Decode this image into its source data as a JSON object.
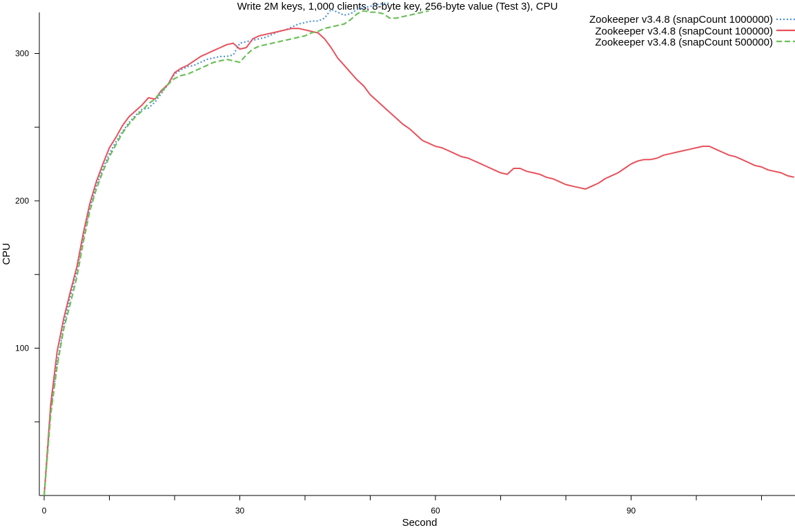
{
  "chart_data": {
    "type": "line",
    "title": "Write 2M keys, 1,000 clients, 8-byte key, 256-byte value (Test 3), CPU",
    "xlabel": "Second",
    "ylabel": "CPU",
    "xlim": [
      0,
      115
    ],
    "ylim": [
      0,
      335
    ],
    "x_ticks": [
      0,
      30,
      60,
      90
    ],
    "y_ticks": [
      100,
      200,
      300
    ],
    "grid": false,
    "legend_position": "top-right",
    "series": [
      {
        "name": "Zookeeper v3.4.8 (snapCount 1000000)",
        "color": "#4a90d9",
        "style": "dotted",
        "x": [
          0,
          1,
          2,
          3,
          4,
          5,
          6,
          7,
          8,
          9,
          10,
          11,
          12,
          13,
          14,
          15,
          16,
          17,
          18,
          19,
          20,
          21,
          22,
          23,
          24,
          25,
          26,
          27,
          28,
          29,
          30,
          31,
          32,
          33,
          34,
          35,
          36,
          37,
          38,
          39,
          40,
          41,
          42,
          43,
          44,
          45,
          46,
          47,
          48,
          49,
          50,
          51,
          52,
          53
        ],
        "y": [
          0,
          58,
          90,
          115,
          135,
          152,
          175,
          195,
          210,
          222,
          232,
          240,
          247,
          253,
          258,
          262,
          263,
          267,
          273,
          279,
          286,
          289,
          291,
          292,
          294,
          296,
          297,
          298,
          298,
          299,
          307,
          308,
          309,
          310,
          311,
          313,
          315,
          316,
          318,
          320,
          321,
          322,
          322,
          324,
          330,
          328,
          326,
          327,
          330,
          331,
          332,
          333,
          334,
          334
        ]
      },
      {
        "name": "Zookeeper v3.4.8 (snapCount 100000)",
        "color": "#e8505b",
        "style": "solid",
        "x": [
          0,
          1,
          2,
          3,
          4,
          5,
          6,
          7,
          8,
          9,
          10,
          11,
          12,
          13,
          14,
          15,
          16,
          17,
          18,
          19,
          20,
          21,
          22,
          23,
          24,
          25,
          26,
          27,
          28,
          29,
          30,
          31,
          32,
          33,
          34,
          35,
          36,
          37,
          38,
          39,
          40,
          41,
          42,
          43,
          44,
          45,
          46,
          47,
          48,
          49,
          50,
          51,
          52,
          53,
          54,
          55,
          56,
          57,
          58,
          59,
          60,
          61,
          62,
          63,
          64,
          65,
          66,
          67,
          68,
          69,
          70,
          71,
          72,
          73,
          74,
          75,
          76,
          77,
          78,
          79,
          80,
          81,
          82,
          83,
          84,
          85,
          86,
          87,
          88,
          89,
          90,
          91,
          92,
          93,
          94,
          95,
          96,
          97,
          98,
          99,
          100,
          101,
          102,
          103,
          104,
          105,
          106,
          107,
          108,
          109,
          110,
          111,
          112,
          113,
          114,
          115
        ],
        "y": [
          0,
          62,
          98,
          120,
          138,
          155,
          178,
          198,
          213,
          225,
          236,
          243,
          251,
          257,
          261,
          265,
          270,
          269,
          275,
          279,
          287,
          290,
          292,
          295,
          298,
          300,
          302,
          304,
          306,
          307,
          303,
          304,
          310,
          312,
          313,
          314,
          315,
          316,
          317,
          317,
          316,
          315,
          314,
          310,
          304,
          297,
          292,
          287,
          282,
          278,
          272,
          268,
          264,
          260,
          256,
          252,
          249,
          245,
          241,
          239,
          237,
          236,
          234,
          232,
          230,
          229,
          227,
          225,
          223,
          221,
          219,
          218,
          222,
          222,
          220,
          219,
          218,
          216,
          215,
          213,
          211,
          210,
          209,
          208,
          210,
          212,
          215,
          217,
          219,
          222,
          225,
          227,
          228,
          228,
          229,
          231,
          232,
          233,
          234,
          235,
          236,
          237,
          237,
          235,
          233,
          231,
          230,
          228,
          226,
          224,
          223,
          221,
          220,
          219,
          217,
          216
        ]
      },
      {
        "name": "Zookeeper v3.4.8 (snapCount 500000)",
        "color": "#6cbf58",
        "style": "dashed",
        "x": [
          0,
          1,
          2,
          3,
          4,
          5,
          6,
          7,
          8,
          9,
          10,
          11,
          12,
          13,
          14,
          15,
          16,
          17,
          18,
          19,
          20,
          21,
          22,
          23,
          24,
          25,
          26,
          27,
          28,
          29,
          30,
          31,
          32,
          33,
          34,
          35,
          36,
          37,
          38,
          39,
          40,
          41,
          42,
          43,
          44,
          45,
          46,
          47,
          48,
          49,
          50,
          51,
          52,
          53,
          54,
          55,
          56,
          57,
          58,
          59
        ],
        "y": [
          0,
          55,
          88,
          113,
          130,
          148,
          172,
          193,
          208,
          220,
          230,
          238,
          246,
          252,
          257,
          261,
          266,
          269,
          274,
          279,
          283,
          285,
          286,
          288,
          290,
          292,
          294,
          295,
          296,
          295,
          294,
          299,
          303,
          305,
          306,
          307,
          308,
          309,
          310,
          311,
          312,
          314,
          315,
          317,
          318,
          319,
          320,
          323,
          327,
          329,
          328,
          328,
          327,
          324,
          324,
          325,
          326,
          327,
          328,
          329
        ]
      }
    ]
  }
}
